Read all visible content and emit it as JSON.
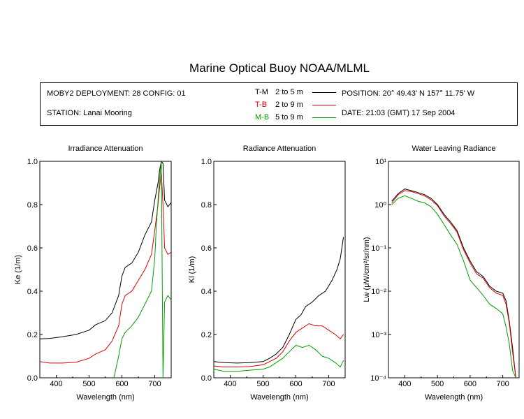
{
  "title": "Marine Optical Buoy NOAA/MLML",
  "info": {
    "deployment": "MOBY2 DEPLOYMENT: 28 CONFIG: 01",
    "station": "STATION: Lanai Mooring",
    "position": "POSITION: 20° 49.43' N   157° 11.75' W",
    "date": "DATE: 21:03 (GMT) 17 Sep 2004"
  },
  "legend": [
    {
      "label": "T-M",
      "range": "2 to 5  m",
      "color": "#000000"
    },
    {
      "label": "T-B",
      "range": "2 to 9  m",
      "color": "#e00000"
    },
    {
      "label": "M-B",
      "range": "5 to 9  m",
      "color": "#00a000"
    }
  ],
  "chart_data": [
    {
      "type": "line",
      "title": "Irradiance Attenuation",
      "xlabel": "Wavelength (nm)",
      "ylabel": "Ke  (1/m)",
      "xlim": [
        350,
        750
      ],
      "ylim": [
        0,
        1
      ],
      "x_ticks": [
        "400",
        "500",
        "600",
        "700"
      ],
      "y_ticks": [
        "0.0",
        "0.2",
        "0.4",
        "0.6",
        "0.8",
        "1.0"
      ],
      "series": [
        {
          "name": "T-M",
          "color": "#000000",
          "x": [
            350,
            380,
            420,
            460,
            500,
            520,
            550,
            570,
            590,
            600,
            610,
            630,
            650,
            670,
            690,
            700,
            710,
            715,
            720,
            725,
            730,
            740,
            750
          ],
          "y": [
            0.18,
            0.182,
            0.19,
            0.2,
            0.22,
            0.245,
            0.265,
            0.3,
            0.38,
            0.47,
            0.51,
            0.53,
            0.58,
            0.66,
            0.72,
            0.82,
            0.9,
            0.96,
            1.0,
            0.99,
            0.82,
            0.79,
            0.81
          ]
        },
        {
          "name": "T-B",
          "color": "#e00000",
          "x": [
            350,
            380,
            420,
            460,
            500,
            520,
            550,
            570,
            590,
            600,
            610,
            630,
            650,
            670,
            690,
            700,
            710,
            715,
            720,
            725,
            730,
            740,
            750
          ],
          "y": [
            0.075,
            0.068,
            0.068,
            0.072,
            0.09,
            0.11,
            0.13,
            0.17,
            0.24,
            0.34,
            0.38,
            0.4,
            0.45,
            0.5,
            0.57,
            0.68,
            0.8,
            0.88,
            0.95,
            0.8,
            0.6,
            0.57,
            0.58
          ]
        },
        {
          "name": "M-B",
          "color": "#00a000",
          "x": [
            575,
            580,
            590,
            600,
            610,
            630,
            650,
            670,
            690,
            700,
            705,
            710,
            715,
            720,
            725,
            730,
            740,
            750
          ],
          "y": [
            0.0,
            0.03,
            0.1,
            0.18,
            0.21,
            0.24,
            0.28,
            0.34,
            0.4,
            0.55,
            0.7,
            0.82,
            0.92,
            1.0,
            0.0,
            0.35,
            0.38,
            0.36
          ]
        }
      ]
    },
    {
      "type": "line",
      "title": "Radiance Attenuation",
      "xlabel": "Wavelength (nm)",
      "ylabel": "Kl  (1/m)",
      "xlim": [
        350,
        750
      ],
      "ylim": [
        0,
        1
      ],
      "x_ticks": [
        "400",
        "500",
        "600",
        "700"
      ],
      "y_ticks": [
        "0.0",
        "0.2",
        "0.4",
        "0.6",
        "0.8",
        "1.0"
      ],
      "series": [
        {
          "name": "T-M",
          "color": "#000000",
          "x": [
            350,
            380,
            420,
            460,
            500,
            520,
            540,
            560,
            580,
            600,
            615,
            630,
            650,
            670,
            690,
            710,
            725,
            735,
            745
          ],
          "y": [
            0.075,
            0.07,
            0.068,
            0.07,
            0.075,
            0.09,
            0.11,
            0.14,
            0.2,
            0.27,
            0.29,
            0.33,
            0.35,
            0.38,
            0.4,
            0.45,
            0.5,
            0.55,
            0.65
          ]
        },
        {
          "name": "T-B",
          "color": "#e00000",
          "x": [
            350,
            380,
            420,
            460,
            500,
            520,
            540,
            560,
            580,
            600,
            620,
            640,
            660,
            680,
            700,
            720,
            735,
            745
          ],
          "y": [
            0.055,
            0.05,
            0.05,
            0.052,
            0.06,
            0.075,
            0.09,
            0.12,
            0.17,
            0.21,
            0.23,
            0.25,
            0.24,
            0.24,
            0.22,
            0.2,
            0.18,
            0.2
          ]
        },
        {
          "name": "M-B",
          "color": "#00a000",
          "x": [
            350,
            380,
            420,
            460,
            500,
            520,
            540,
            560,
            580,
            600,
            620,
            640,
            660,
            680,
            700,
            720,
            735,
            745
          ],
          "y": [
            0.04,
            0.03,
            0.03,
            0.035,
            0.04,
            0.05,
            0.07,
            0.09,
            0.12,
            0.15,
            0.14,
            0.15,
            0.13,
            0.1,
            0.09,
            0.07,
            0.05,
            0.08
          ]
        }
      ]
    },
    {
      "type": "line",
      "title": "Water Leaving Radiance",
      "xlabel": "Wavelength (nm)",
      "ylabel": "Lw  (μW/cm²/sr/nm)",
      "xlim": [
        350,
        750
      ],
      "ylim": [
        0.0001,
        10
      ],
      "yscale": "log",
      "x_ticks": [
        "400",
        "500",
        "600",
        "700"
      ],
      "y_ticks": [
        "10¹",
        "10⁰",
        "10⁻¹",
        "10⁻²",
        "10⁻³",
        "10⁻⁴"
      ],
      "series": [
        {
          "name": "T-M",
          "color": "#000000",
          "x": [
            360,
            380,
            400,
            420,
            440,
            460,
            480,
            500,
            520,
            540,
            560,
            580,
            600,
            620,
            640,
            660,
            680,
            700,
            710,
            720,
            730,
            740
          ],
          "y": [
            1.2,
            1.8,
            2.3,
            2.1,
            1.9,
            1.7,
            1.4,
            1.0,
            0.6,
            0.4,
            0.25,
            0.1,
            0.05,
            0.028,
            0.022,
            0.013,
            0.01,
            0.009,
            0.006,
            0.002,
            0.0005,
            0.0001
          ]
        },
        {
          "name": "T-B",
          "color": "#e00000",
          "x": [
            360,
            380,
            400,
            420,
            440,
            460,
            480,
            500,
            520,
            540,
            560,
            580,
            600,
            620,
            640,
            660,
            680,
            700,
            710,
            720,
            730,
            740
          ],
          "y": [
            1.1,
            1.7,
            2.1,
            2.0,
            1.8,
            1.6,
            1.3,
            0.95,
            0.55,
            0.37,
            0.23,
            0.09,
            0.045,
            0.025,
            0.02,
            0.012,
            0.009,
            0.008,
            0.005,
            0.0018,
            0.0004,
            0.0001
          ]
        },
        {
          "name": "M-B",
          "color": "#00a000",
          "x": [
            360,
            380,
            400,
            420,
            440,
            460,
            480,
            500,
            520,
            540,
            560,
            580,
            600,
            620,
            640,
            660,
            680,
            700,
            710,
            720,
            730,
            740
          ],
          "y": [
            1.0,
            1.4,
            1.6,
            1.4,
            1.2,
            1.1,
            0.9,
            0.6,
            0.35,
            0.2,
            0.12,
            0.05,
            0.018,
            0.012,
            0.008,
            0.005,
            0.004,
            0.003,
            0.0015,
            0.0006,
            0.00015,
            0.0001
          ]
        }
      ]
    }
  ]
}
